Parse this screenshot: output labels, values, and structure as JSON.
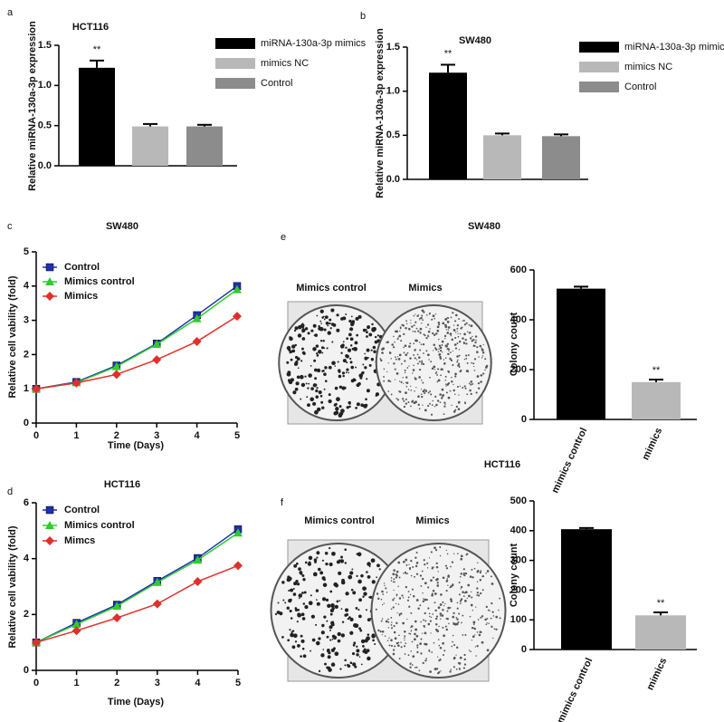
{
  "chart_data": [
    {
      "panel": "a",
      "type": "bar",
      "title": "HCT116",
      "y_label": "Relative miRNA-130a-3p expression",
      "ylim": [
        0,
        1.5
      ],
      "yticks": [
        {
          "value": 0,
          "label": "0.0"
        },
        0.5,
        {
          "value": 1,
          "label": "1.0"
        },
        1.5
      ],
      "series": [
        {
          "name": "miRNA-130a-3p mimics",
          "color": "#000000",
          "values": [
            1.22
          ],
          "errors": [
            0.09
          ],
          "annotation": "**"
        },
        {
          "name": "mimics NC",
          "color": "#b8b8b8",
          "values": [
            0.49
          ],
          "errors": [
            0.03
          ]
        },
        {
          "name": "Control",
          "color": "#8c8c8c",
          "values": [
            0.49
          ],
          "errors": [
            0.02
          ]
        }
      ]
    },
    {
      "panel": "b",
      "type": "bar",
      "title": "SW480",
      "y_label": "Relative miRNA-130a-3p expression",
      "ylim": [
        0,
        1.5
      ],
      "yticks": [
        {
          "value": 0,
          "label": "0.0"
        },
        0.5,
        {
          "value": 1,
          "label": "1.0"
        },
        1.5
      ],
      "series": [
        {
          "name": "miRNA-130a-3p mimics",
          "color": "#000000",
          "values": [
            1.21
          ],
          "errors": [
            0.09
          ],
          "annotation": "**"
        },
        {
          "name": "mimics NC",
          "color": "#b8b8b8",
          "values": [
            0.5
          ],
          "errors": [
            0.02
          ]
        },
        {
          "name": "Control",
          "color": "#8c8c8c",
          "values": [
            0.49
          ],
          "errors": [
            0.02
          ]
        }
      ]
    },
    {
      "panel": "c",
      "type": "line",
      "title": "SW480",
      "x_label": "Time (Days)",
      "y_label": "Relative cell vability (fold)",
      "x": [
        0,
        1,
        2,
        3,
        4,
        5
      ],
      "xlim": [
        0,
        5
      ],
      "xticks": [
        0,
        1,
        2,
        3,
        4,
        5
      ],
      "ylim": [
        0,
        5
      ],
      "yticks": [
        0,
        1,
        2,
        3,
        4,
        5
      ],
      "series": [
        {
          "name": "Control",
          "color": "#1f2fb0",
          "marker": "square",
          "values": [
            1,
            1.2,
            1.68,
            2.32,
            3.15,
            4.0
          ]
        },
        {
          "name": "Mimics control",
          "color": "#2ecc2e",
          "marker": "triangle",
          "values": [
            1,
            1.18,
            1.65,
            2.3,
            3.05,
            3.9
          ]
        },
        {
          "name": "Mimics",
          "color": "#e0302a",
          "marker": "diamond",
          "values": [
            1,
            1.17,
            1.42,
            1.85,
            2.38,
            3.12
          ]
        }
      ]
    },
    {
      "panel": "d",
      "type": "line",
      "title": "HCT116",
      "x_label": "Time (Days)",
      "y_label": "Relative cell vability (fold)",
      "x": [
        0,
        1,
        2,
        3,
        4,
        5
      ],
      "xlim": [
        0,
        5
      ],
      "xticks": [
        0,
        1,
        2,
        3,
        4,
        5
      ],
      "ylim": [
        0,
        6
      ],
      "yticks": [
        0,
        2,
        4,
        6
      ],
      "series": [
        {
          "name": "Control",
          "color": "#1f2fb0",
          "marker": "square",
          "values": [
            1,
            1.7,
            2.35,
            3.2,
            4.02,
            5.05
          ]
        },
        {
          "name": "Mimics control",
          "color": "#2ecc2e",
          "marker": "triangle",
          "values": [
            1,
            1.65,
            2.3,
            3.15,
            3.95,
            4.92
          ]
        },
        {
          "name": "Mimcs",
          "color": "#e0302a",
          "marker": "diamond",
          "values": [
            1,
            1.42,
            1.88,
            2.38,
            3.18,
            3.75
          ]
        }
      ]
    },
    {
      "panel": "e",
      "type": "colony",
      "title": "SW480",
      "image_labels": [
        "Mimics control",
        "Mimics"
      ],
      "y_label": "Colony count",
      "categories": [
        "mimics control",
        "mimics"
      ],
      "values": [
        525,
        150
      ],
      "errors": [
        8,
        10
      ],
      "colors": [
        "#000000",
        "#b8b8b8"
      ],
      "significance": [
        null,
        "**"
      ],
      "ylim": [
        0,
        600
      ],
      "yticks": [
        0,
        200,
        400,
        600
      ]
    },
    {
      "panel": "f",
      "type": "colony",
      "title": "HCT116",
      "image_labels": [
        "Mimics control",
        "Mimics"
      ],
      "y_label": "Colony count",
      "categories": [
        "mimics control",
        "mimics"
      ],
      "values": [
        405,
        115
      ],
      "errors": [
        4,
        10
      ],
      "colors": [
        "#000000",
        "#b8b8b8"
      ],
      "significance": [
        null,
        "**"
      ],
      "ylim": [
        0,
        500
      ],
      "yticks": [
        0,
        100,
        200,
        300,
        400,
        500
      ]
    }
  ]
}
